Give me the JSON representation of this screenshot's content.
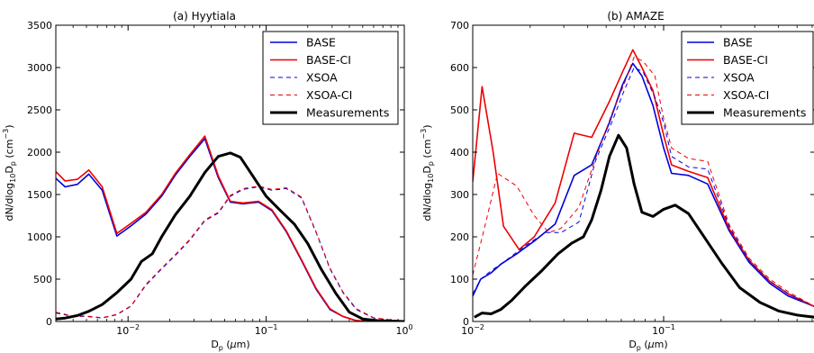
{
  "chart_data": [
    {
      "type": "line",
      "title": "(a) Hyytiala",
      "xlabel": "D_p (μm)",
      "ylabel": "dN/dlog10Dp (cm^-3)",
      "xscale": "log",
      "xlim": [
        0.003,
        1.0
      ],
      "ylim": [
        0,
        3500
      ],
      "yticks": [
        "0",
        "500",
        "1000",
        "1500",
        "2000",
        "2500",
        "3000",
        "3500"
      ],
      "xticks": [
        {
          "v": 0.01,
          "base": "10",
          "exp": "-2"
        },
        {
          "v": 0.1,
          "base": "10",
          "exp": "-1"
        },
        {
          "v": 1.0,
          "base": "10",
          "exp": "0"
        }
      ],
      "legend_placement": "upper-right",
      "series": [
        {
          "name": "BASE",
          "color": "#0000dd",
          "dash": "solid",
          "width": 1.6,
          "points": [
            [
              0.003,
              1690
            ],
            [
              0.0035,
              1590
            ],
            [
              0.0043,
              1620
            ],
            [
              0.0052,
              1740
            ],
            [
              0.0065,
              1550
            ],
            [
              0.0083,
              1010
            ],
            [
              0.0105,
              1130
            ],
            [
              0.0135,
              1270
            ],
            [
              0.0175,
              1480
            ],
            [
              0.022,
              1730
            ],
            [
              0.028,
              1950
            ],
            [
              0.036,
              2160
            ],
            [
              0.045,
              1700
            ],
            [
              0.055,
              1410
            ],
            [
              0.068,
              1390
            ],
            [
              0.088,
              1410
            ],
            [
              0.11,
              1310
            ],
            [
              0.14,
              1060
            ],
            [
              0.18,
              720
            ],
            [
              0.23,
              380
            ],
            [
              0.29,
              140
            ],
            [
              0.36,
              60
            ],
            [
              0.45,
              10
            ],
            [
              0.6,
              0
            ],
            [
              1.0,
              0
            ]
          ]
        },
        {
          "name": "BASE-CI",
          "color": "#ee0000",
          "dash": "solid",
          "width": 1.6,
          "points": [
            [
              0.003,
              1770
            ],
            [
              0.0035,
              1660
            ],
            [
              0.0043,
              1680
            ],
            [
              0.0052,
              1790
            ],
            [
              0.0065,
              1590
            ],
            [
              0.0083,
              1040
            ],
            [
              0.0105,
              1160
            ],
            [
              0.0135,
              1290
            ],
            [
              0.0175,
              1500
            ],
            [
              0.022,
              1750
            ],
            [
              0.028,
              1970
            ],
            [
              0.036,
              2190
            ],
            [
              0.045,
              1720
            ],
            [
              0.055,
              1420
            ],
            [
              0.068,
              1400
            ],
            [
              0.088,
              1420
            ],
            [
              0.11,
              1320
            ],
            [
              0.14,
              1070
            ],
            [
              0.18,
              730
            ],
            [
              0.23,
              390
            ],
            [
              0.29,
              150
            ],
            [
              0.36,
              60
            ],
            [
              0.45,
              10
            ],
            [
              0.6,
              0
            ],
            [
              1.0,
              0
            ]
          ]
        },
        {
          "name": "XSOA",
          "color": "#0000dd",
          "dash": "dashed",
          "width": 1,
          "points": [
            [
              0.003,
              100
            ],
            [
              0.004,
              60
            ],
            [
              0.005,
              60
            ],
            [
              0.0065,
              40
            ],
            [
              0.0083,
              80
            ],
            [
              0.0105,
              180
            ],
            [
              0.0135,
              430
            ],
            [
              0.0175,
              620
            ],
            [
              0.022,
              780
            ],
            [
              0.028,
              960
            ],
            [
              0.036,
              1190
            ],
            [
              0.045,
              1280
            ],
            [
              0.055,
              1480
            ],
            [
              0.068,
              1560
            ],
            [
              0.088,
              1590
            ],
            [
              0.11,
              1550
            ],
            [
              0.14,
              1570
            ],
            [
              0.18,
              1460
            ],
            [
              0.23,
              1050
            ],
            [
              0.29,
              620
            ],
            [
              0.36,
              340
            ],
            [
              0.45,
              140
            ],
            [
              0.6,
              40
            ],
            [
              1.0,
              0
            ]
          ]
        },
        {
          "name": "XSOA-CI",
          "color": "#ee0000",
          "dash": "dashed",
          "width": 1,
          "points": [
            [
              0.003,
              110
            ],
            [
              0.004,
              65
            ],
            [
              0.005,
              65
            ],
            [
              0.0065,
              45
            ],
            [
              0.0083,
              85
            ],
            [
              0.0105,
              185
            ],
            [
              0.0135,
              440
            ],
            [
              0.0175,
              630
            ],
            [
              0.022,
              790
            ],
            [
              0.028,
              970
            ],
            [
              0.036,
              1200
            ],
            [
              0.045,
              1290
            ],
            [
              0.055,
              1490
            ],
            [
              0.068,
              1570
            ],
            [
              0.088,
              1600
            ],
            [
              0.11,
              1560
            ],
            [
              0.14,
              1580
            ],
            [
              0.18,
              1470
            ],
            [
              0.23,
              1060
            ],
            [
              0.29,
              630
            ],
            [
              0.36,
              350
            ],
            [
              0.45,
              150
            ],
            [
              0.6,
              45
            ],
            [
              1.0,
              0
            ]
          ]
        },
        {
          "name": "Measurements",
          "color": "#000000",
          "dash": "solid",
          "width": 3,
          "points": [
            [
              0.003,
              30
            ],
            [
              0.0035,
              40
            ],
            [
              0.0043,
              70
            ],
            [
              0.0052,
              120
            ],
            [
              0.0065,
              200
            ],
            [
              0.0083,
              340
            ],
            [
              0.0105,
              500
            ],
            [
              0.0125,
              710
            ],
            [
              0.015,
              800
            ],
            [
              0.0175,
              1000
            ],
            [
              0.022,
              1260
            ],
            [
              0.028,
              1480
            ],
            [
              0.036,
              1760
            ],
            [
              0.045,
              1950
            ],
            [
              0.055,
              1990
            ],
            [
              0.065,
              1940
            ],
            [
              0.08,
              1720
            ],
            [
              0.1,
              1480
            ],
            [
              0.125,
              1320
            ],
            [
              0.16,
              1150
            ],
            [
              0.2,
              920
            ],
            [
              0.25,
              620
            ],
            [
              0.32,
              330
            ],
            [
              0.4,
              110
            ],
            [
              0.5,
              30
            ],
            [
              0.65,
              10
            ],
            [
              1.0,
              0
            ]
          ]
        }
      ]
    },
    {
      "type": "line",
      "title": "(b) AMAZE",
      "xlabel": "D_p (μm)",
      "ylabel": "dN/dlog10Dp (cm^-3)",
      "xscale": "log",
      "xlim": [
        0.01,
        0.62
      ],
      "ylim": [
        0,
        700
      ],
      "yticks": [
        "0",
        "100",
        "200",
        "300",
        "400",
        "500",
        "600",
        "700"
      ],
      "xticks": [
        {
          "v": 0.01,
          "base": "10",
          "exp": "-2"
        },
        {
          "v": 0.1,
          "base": "10",
          "exp": "-1"
        }
      ],
      "legend_placement": "upper-right",
      "series": [
        {
          "name": "BASE",
          "color": "#0000dd",
          "dash": "solid",
          "width": 1.6,
          "points": [
            [
              0.01,
              60
            ],
            [
              0.011,
              100
            ],
            [
              0.0125,
              115
            ],
            [
              0.014,
              135
            ],
            [
              0.017,
              160
            ],
            [
              0.021,
              190
            ],
            [
              0.027,
              230
            ],
            [
              0.034,
              345
            ],
            [
              0.042,
              370
            ],
            [
              0.052,
              470
            ],
            [
              0.061,
              560
            ],
            [
              0.069,
              610
            ],
            [
              0.077,
              580
            ],
            [
              0.088,
              510
            ],
            [
              0.1,
              410
            ],
            [
              0.11,
              350
            ],
            [
              0.135,
              345
            ],
            [
              0.17,
              325
            ],
            [
              0.22,
              215
            ],
            [
              0.28,
              140
            ],
            [
              0.36,
              90
            ],
            [
              0.45,
              60
            ],
            [
              0.62,
              35
            ]
          ]
        },
        {
          "name": "BASE-CI",
          "color": "#ee0000",
          "dash": "solid",
          "width": 1.6,
          "points": [
            [
              0.01,
              330
            ],
            [
              0.0112,
              555
            ],
            [
              0.0128,
              400
            ],
            [
              0.0145,
              225
            ],
            [
              0.0175,
              170
            ],
            [
              0.021,
              200
            ],
            [
              0.027,
              280
            ],
            [
              0.034,
              445
            ],
            [
              0.042,
              435
            ],
            [
              0.052,
              520
            ],
            [
              0.061,
              590
            ],
            [
              0.069,
              642
            ],
            [
              0.077,
              600
            ],
            [
              0.088,
              545
            ],
            [
              0.1,
              440
            ],
            [
              0.11,
              370
            ],
            [
              0.135,
              355
            ],
            [
              0.17,
              340
            ],
            [
              0.22,
              220
            ],
            [
              0.28,
              145
            ],
            [
              0.36,
              95
            ],
            [
              0.45,
              65
            ],
            [
              0.62,
              35
            ]
          ]
        },
        {
          "name": "XSOA",
          "color": "#0000dd",
          "dash": "dashed",
          "width": 1,
          "points": [
            [
              0.01,
              65
            ],
            [
              0.011,
              100
            ],
            [
              0.0125,
              120
            ],
            [
              0.015,
              145
            ],
            [
              0.019,
              180
            ],
            [
              0.024,
              210
            ],
            [
              0.029,
              210
            ],
            [
              0.036,
              235
            ],
            [
              0.044,
              380
            ],
            [
              0.054,
              475
            ],
            [
              0.062,
              545
            ],
            [
              0.07,
              600
            ],
            [
              0.078,
              590
            ],
            [
              0.09,
              530
            ],
            [
              0.1,
              470
            ],
            [
              0.11,
              390
            ],
            [
              0.135,
              365
            ],
            [
              0.17,
              360
            ],
            [
              0.22,
              225
            ],
            [
              0.28,
              145
            ],
            [
              0.36,
              95
            ],
            [
              0.45,
              65
            ],
            [
              0.62,
              35
            ]
          ]
        },
        {
          "name": "XSOA-CI",
          "color": "#ee0000",
          "dash": "dashed",
          "width": 1,
          "points": [
            [
              0.01,
              110
            ],
            [
              0.0115,
              220
            ],
            [
              0.0135,
              350
            ],
            [
              0.017,
              320
            ],
            [
              0.021,
              250
            ],
            [
              0.025,
              210
            ],
            [
              0.029,
              220
            ],
            [
              0.036,
              270
            ],
            [
              0.044,
              385
            ],
            [
              0.054,
              495
            ],
            [
              0.062,
              560
            ],
            [
              0.07,
              625
            ],
            [
              0.078,
              615
            ],
            [
              0.09,
              580
            ],
            [
              0.1,
              480
            ],
            [
              0.11,
              410
            ],
            [
              0.135,
              385
            ],
            [
              0.17,
              378
            ],
            [
              0.22,
              230
            ],
            [
              0.28,
              150
            ],
            [
              0.36,
              100
            ],
            [
              0.45,
              70
            ],
            [
              0.62,
              35
            ]
          ]
        },
        {
          "name": "Measurements",
          "color": "#000000",
          "dash": "solid",
          "width": 3,
          "points": [
            [
              0.0102,
              10
            ],
            [
              0.0112,
              20
            ],
            [
              0.0125,
              18
            ],
            [
              0.014,
              28
            ],
            [
              0.016,
              50
            ],
            [
              0.019,
              85
            ],
            [
              0.023,
              120
            ],
            [
              0.028,
              160
            ],
            [
              0.033,
              185
            ],
            [
              0.038,
              200
            ],
            [
              0.042,
              240
            ],
            [
              0.047,
              310
            ],
            [
              0.052,
              390
            ],
            [
              0.058,
              440
            ],
            [
              0.064,
              410
            ],
            [
              0.07,
              325
            ],
            [
              0.077,
              258
            ],
            [
              0.088,
              248
            ],
            [
              0.1,
              265
            ],
            [
              0.115,
              275
            ],
            [
              0.135,
              255
            ],
            [
              0.16,
              205
            ],
            [
              0.2,
              140
            ],
            [
              0.25,
              80
            ],
            [
              0.32,
              45
            ],
            [
              0.4,
              25
            ],
            [
              0.5,
              15
            ],
            [
              0.62,
              10
            ]
          ]
        }
      ]
    }
  ]
}
